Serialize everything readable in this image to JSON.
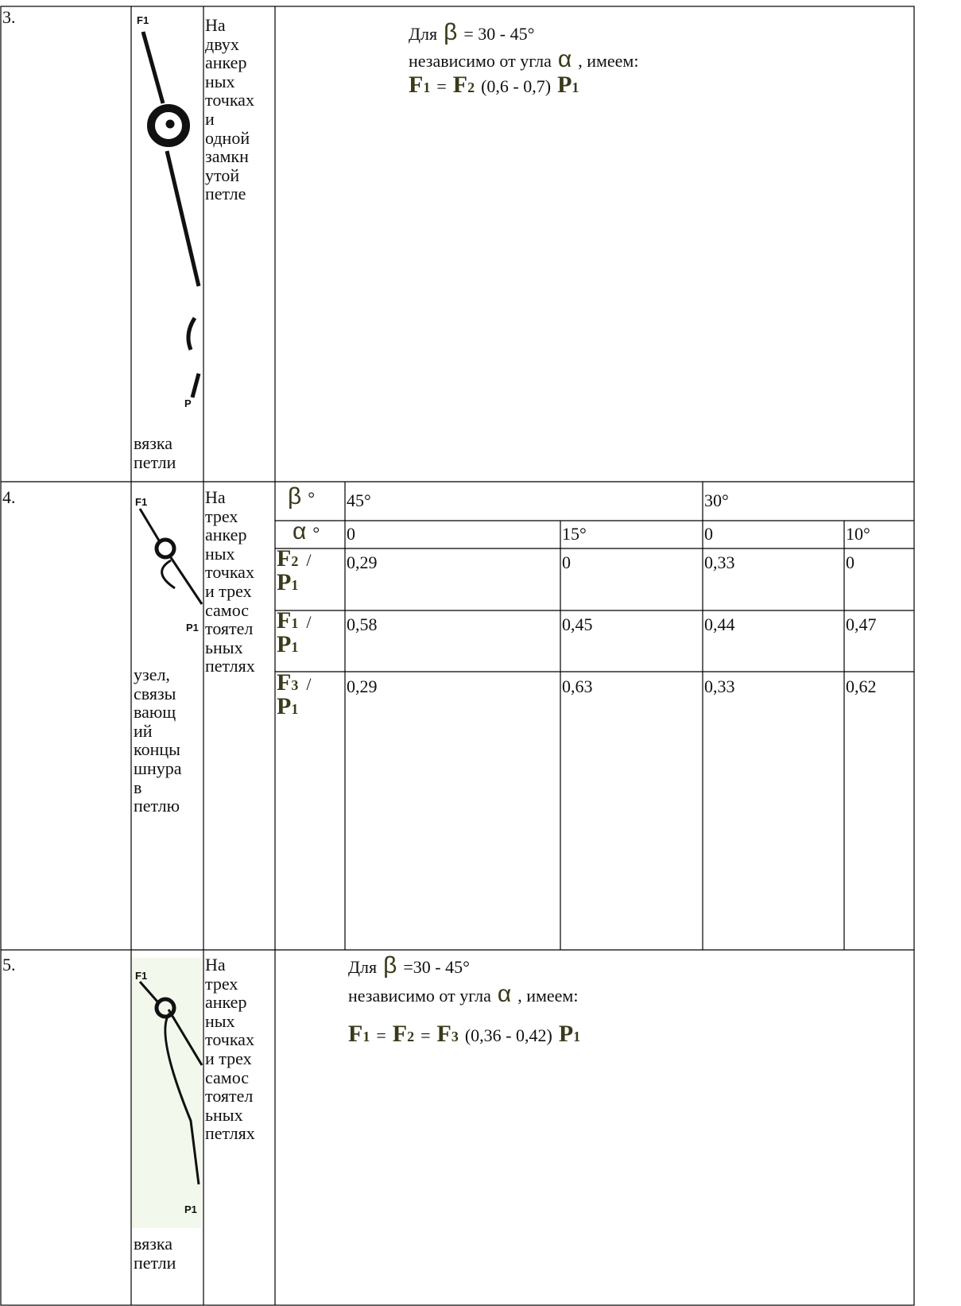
{
  "rows": [
    {
      "number": "3.",
      "image_labels": [
        "F1",
        "P"
      ],
      "description": [
        "На",
        "двух",
        "анкер",
        "ных",
        "точках",
        "и",
        "одной",
        "замкн",
        "утой",
        "петле"
      ],
      "caption": [
        "вязка",
        "петли"
      ],
      "note": [
        [
          {
            "text": "Для"
          },
          {
            "text": "β"
          },
          {
            "text": "= 30 - 45°"
          }
        ],
        [
          {
            "text": "независимо от угла"
          },
          {
            "text": "α"
          },
          {
            "text": ", имеем:"
          }
        ],
        [
          {
            "text": "F",
            "sub": "1"
          },
          {
            "text": "="
          },
          {
            "text": "F",
            "sub": "2"
          },
          {
            "text": "(0,6 - 0,7)"
          },
          {
            "text": "P",
            "sub": "1"
          }
        ]
      ]
    },
    {
      "number": "4.",
      "image_labels": [
        "F1",
        "P1"
      ],
      "description": [
        "На",
        "трех",
        "анкер",
        "ных",
        "точках",
        "и трех",
        "самос",
        "тоятел",
        "ьных",
        "петлях"
      ],
      "caption": [
        "узел,",
        "связы",
        "вающ",
        "ий",
        "концы",
        "шнура",
        "в",
        "петлю"
      ],
      "table": {
        "beta_row": {
          "label": "β",
          "unit": "°",
          "values": [
            "45°",
            "30°"
          ]
        },
        "alpha_row": {
          "label": "α",
          "unit": "°",
          "values": [
            "0",
            "15°",
            "0",
            "10°"
          ]
        },
        "ratio_rows": [
          {
            "num": {
              "text": "F",
              "sub": "2"
            },
            "slash": "/",
            "den": {
              "text": "P",
              "sub": "1"
            },
            "values": [
              "0,29",
              "0",
              "0,33",
              "0"
            ]
          },
          {
            "num": {
              "text": "F",
              "sub": "1"
            },
            "slash": "/",
            "den": {
              "text": "P",
              "sub": "1"
            },
            "values": [
              "0,58",
              "0,45",
              "0,44",
              "0,47"
            ]
          },
          {
            "num": {
              "text": "F",
              "sub": "3"
            },
            "slash": "/",
            "den": {
              "text": "P",
              "sub": "1"
            },
            "values": [
              "0,29",
              "0,63",
              "0,33",
              "0,62"
            ]
          }
        ]
      }
    },
    {
      "number": "5.",
      "image_labels": [
        "F1",
        "P1"
      ],
      "description": [
        "На",
        "трех",
        "анкер",
        "ных",
        "точках",
        "и трех",
        "самос",
        "тоятел",
        "ьных",
        "петлях"
      ],
      "caption": [
        "вязка",
        "петли"
      ],
      "note": [
        [
          {
            "text": "Для"
          },
          {
            "text": "β"
          },
          {
            "text": "=30 - 45°"
          }
        ],
        [
          {
            "text": "независимо от угла"
          },
          {
            "text": "α"
          },
          {
            "text": ", имеем:"
          }
        ],
        [
          {
            "text": "F",
            "sub": "1"
          },
          {
            "text": "="
          },
          {
            "text": "F",
            "sub": "2"
          },
          {
            "text": "="
          },
          {
            "text": "F",
            "sub": "3"
          },
          {
            "text": "(0,36 - 0,42)"
          },
          {
            "text": "P",
            "sub": "1"
          }
        ]
      ]
    }
  ]
}
